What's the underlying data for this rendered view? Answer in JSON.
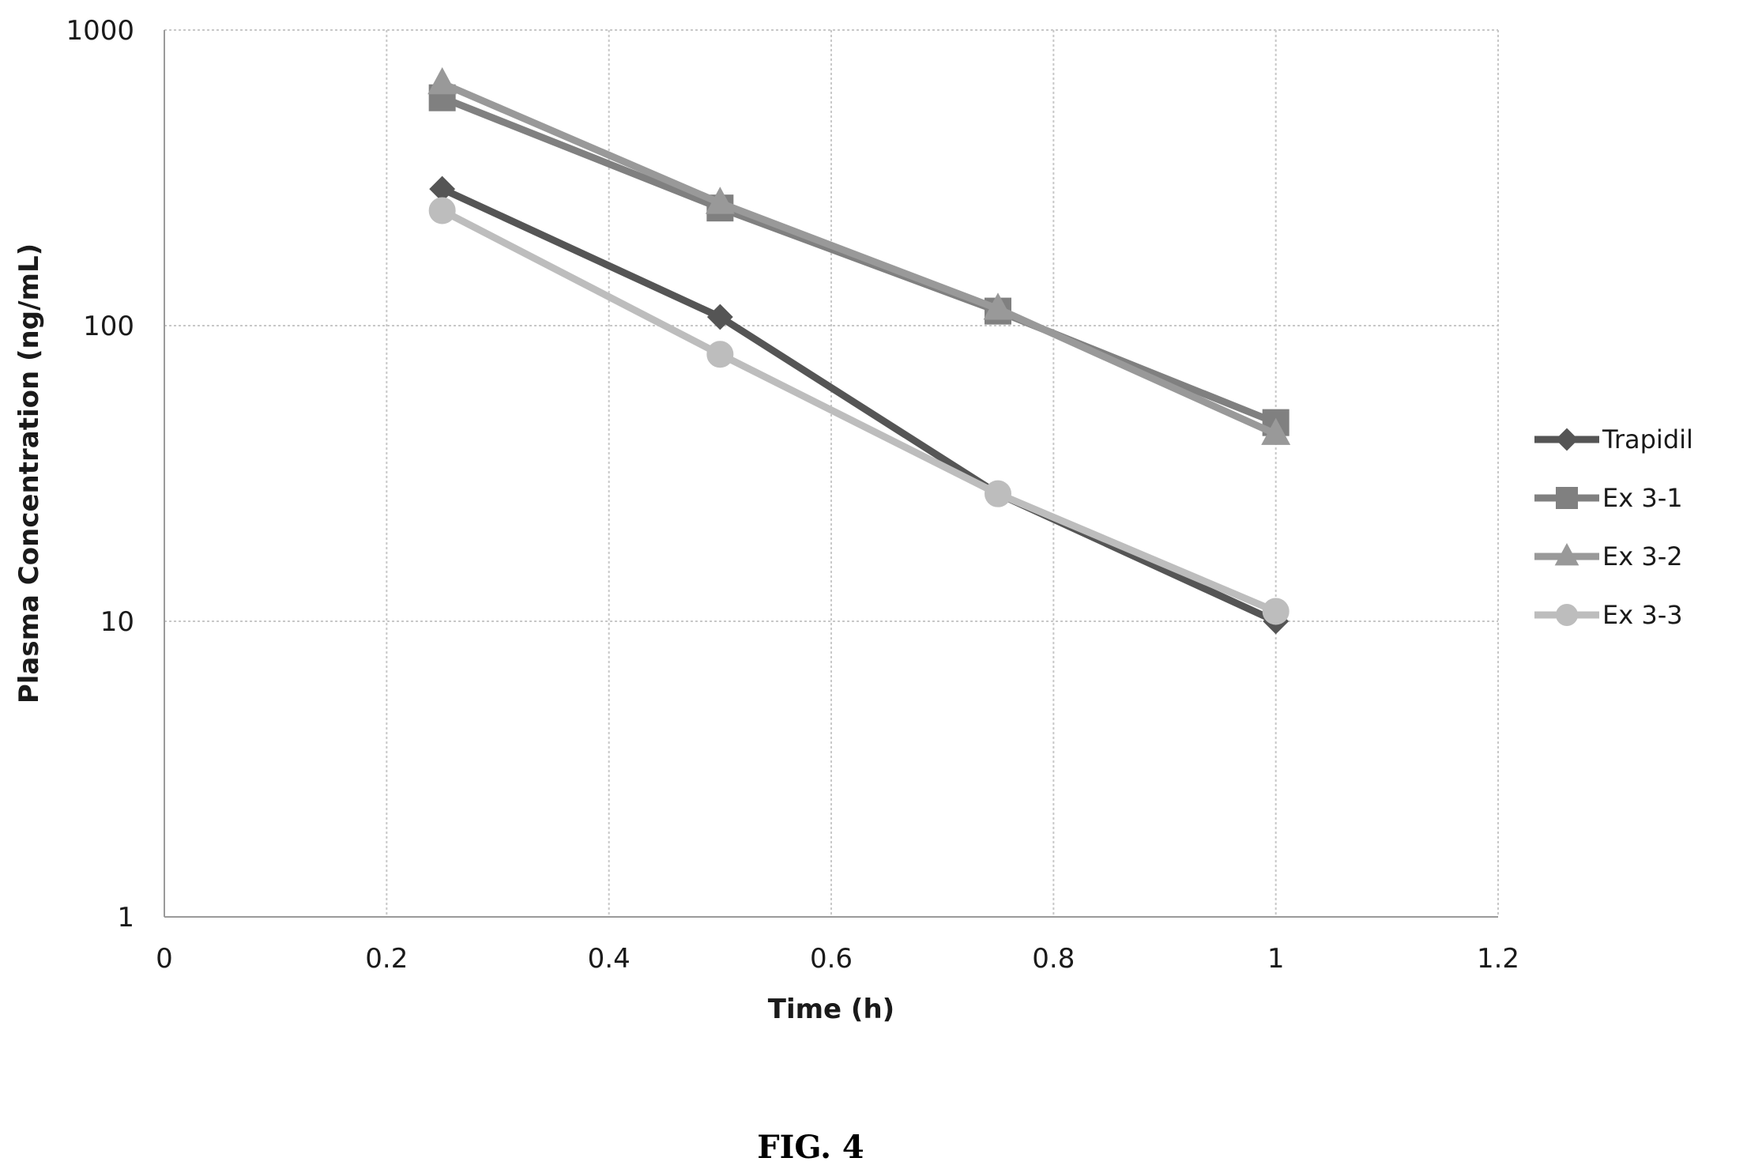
{
  "chart_data": {
    "type": "line",
    "xlabel": "Time (h)",
    "ylabel": "Plasma Concentration (ng/mL)",
    "xlim": [
      0,
      1.2
    ],
    "ylim": [
      1,
      1000
    ],
    "y_scale": "log",
    "x_ticks": [
      0,
      0.2,
      0.4,
      0.6,
      0.8,
      1,
      1.2
    ],
    "x_tick_labels": [
      "0",
      "0.2",
      "0.4",
      "0.6",
      "0.8",
      "1",
      "1.2"
    ],
    "y_ticks": [
      1,
      10,
      100,
      1000
    ],
    "y_tick_labels": [
      "1",
      "10",
      "100",
      "1000"
    ],
    "grid": true,
    "legend_position": "right",
    "series": [
      {
        "name": "Trapidil",
        "marker": "diamond",
        "color": "#555555",
        "x": [
          0.25,
          0.5,
          0.75,
          1
        ],
        "y": [
          290,
          107,
          27,
          10
        ]
      },
      {
        "name": "Ex 3-1",
        "marker": "square",
        "color": "#808080",
        "x": [
          0.25,
          0.5,
          0.75,
          1
        ],
        "y": [
          590,
          250,
          112,
          47
        ]
      },
      {
        "name": "Ex 3-2",
        "marker": "triangle",
        "color": "#999999",
        "x": [
          0.25,
          0.5,
          0.75,
          1
        ],
        "y": [
          660,
          260,
          114,
          43
        ]
      },
      {
        "name": "Ex 3-3",
        "marker": "circle",
        "color": "#bdbdbd",
        "x": [
          0.25,
          0.5,
          0.75,
          1
        ],
        "y": [
          245,
          80,
          27,
          10.8
        ]
      }
    ]
  },
  "caption": "FIG. 4"
}
